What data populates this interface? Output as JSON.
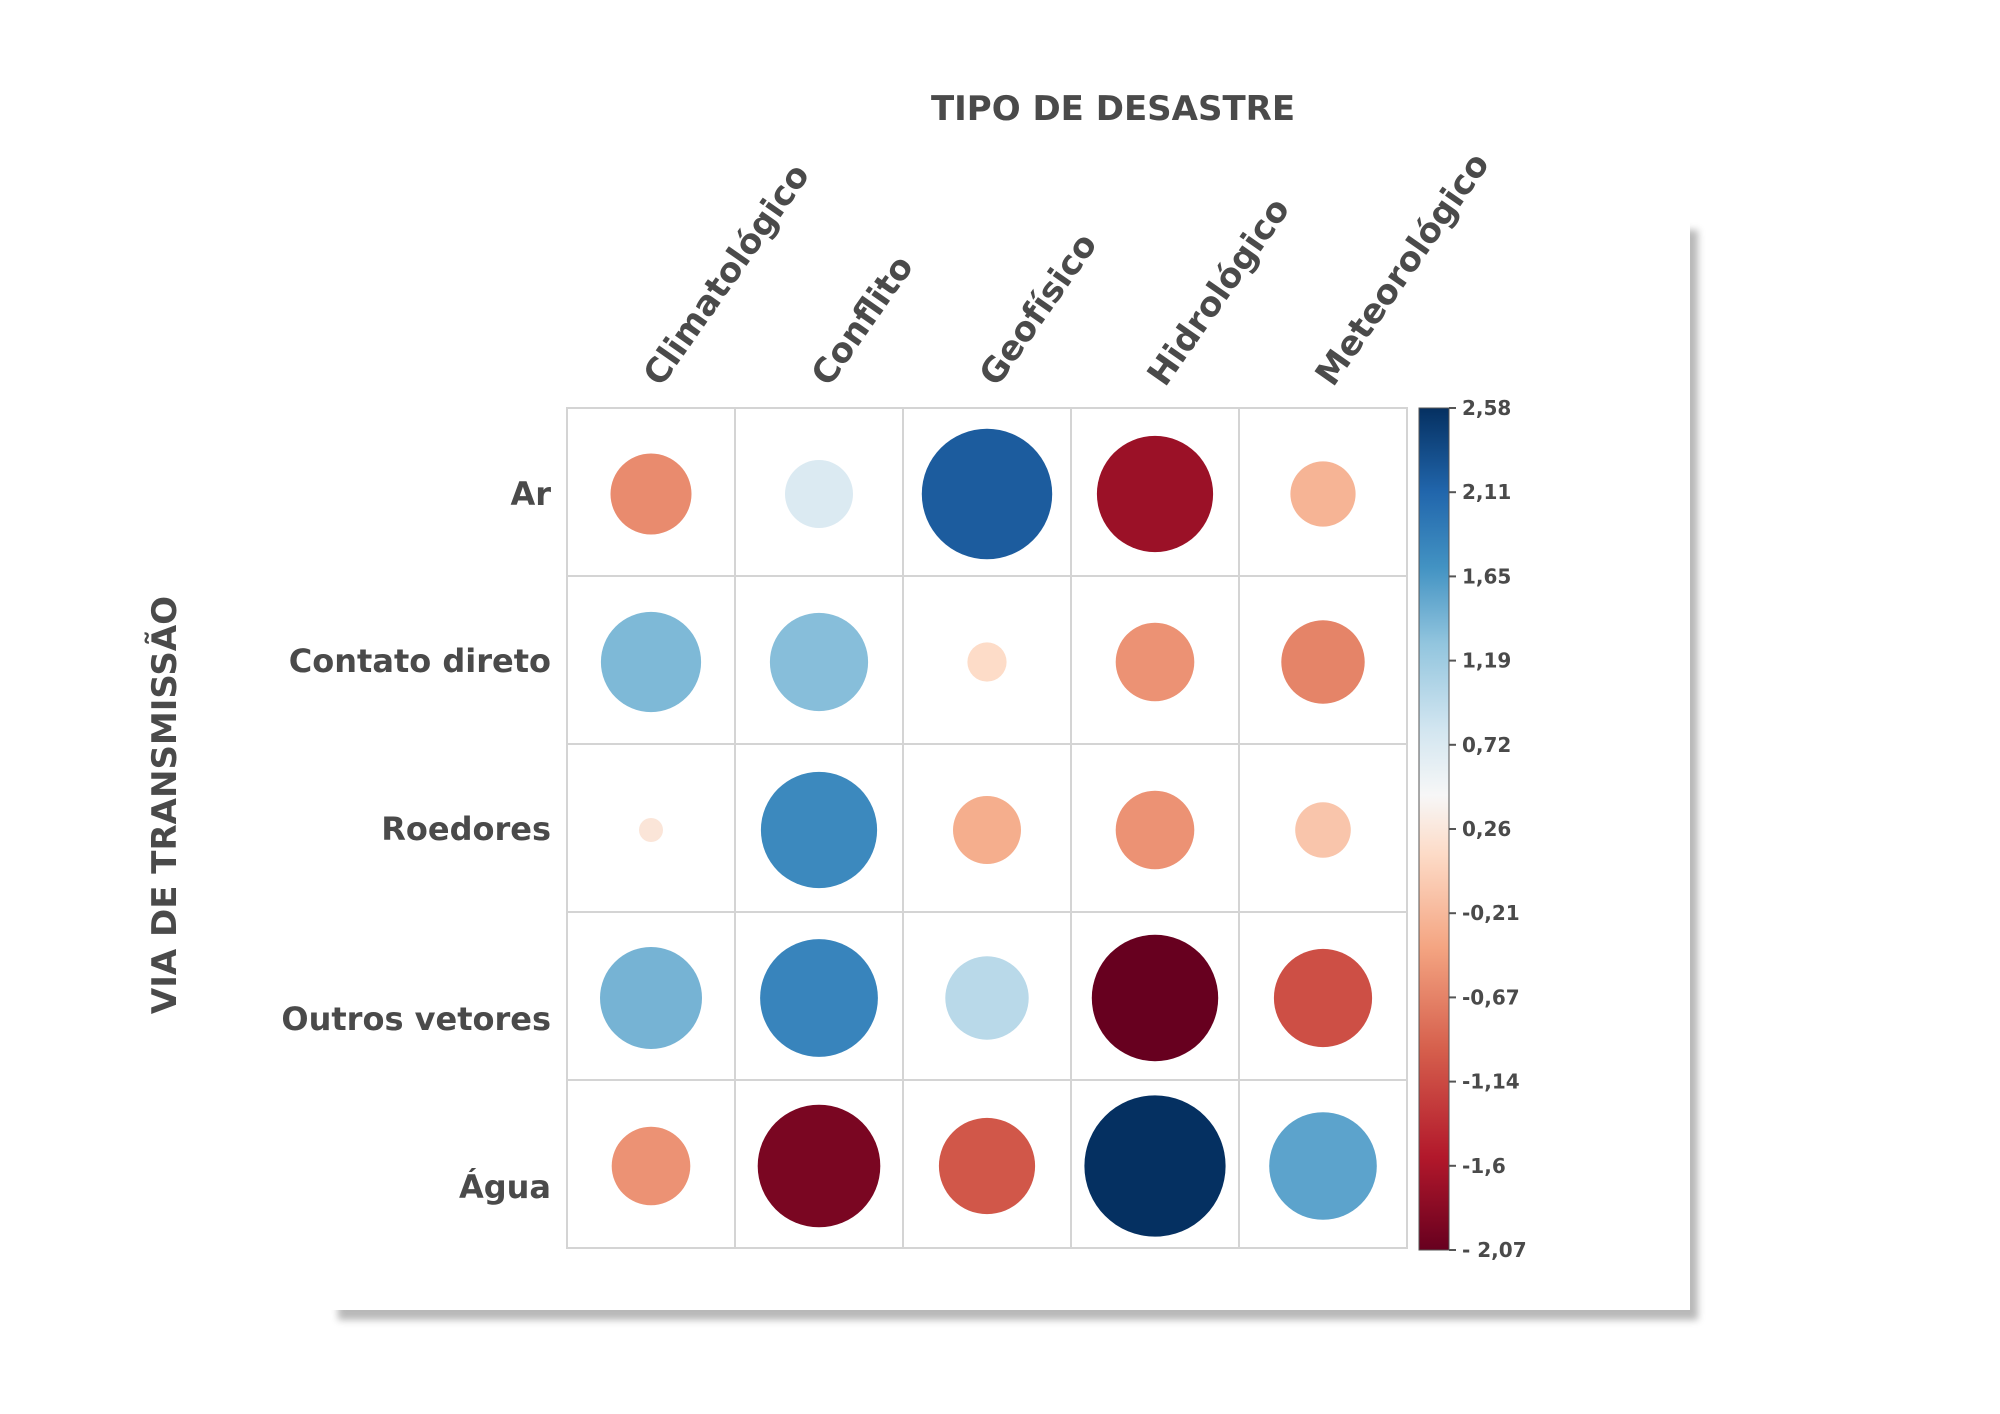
{
  "chart_data": {
    "type": "heatmap",
    "title": "TIPO DE DESASTRE",
    "ylabel": "VIA DE TRANSMISSÃO",
    "columns": [
      "Climatológico",
      "Conflito",
      "Geofísico",
      "Hidrológico",
      "Meteorológico"
    ],
    "rows": [
      "Ar",
      "Contato direto",
      "Roedores",
      "Outros vetores",
      "Água"
    ],
    "values": [
      [
        -0.85,
        0.6,
        2.2,
        -1.75,
        -0.55
      ],
      [
        1.3,
        1.25,
        -0.2,
        -0.8,
        -0.9
      ],
      [
        -0.05,
        1.75,
        -0.6,
        -0.8,
        -0.4
      ],
      [
        1.35,
        1.8,
        0.9,
        -2.07,
        -1.25
      ],
      [
        -0.8,
        -1.95,
        -1.2,
        2.58,
        1.5
      ]
    ],
    "colorbar": {
      "ticks": [
        "2,58",
        "2,11",
        "1,65",
        "1,19",
        "0,72",
        "0,26",
        "-0,21",
        "-0,67",
        "-1,14",
        "-1,6",
        "- 2,07"
      ],
      "range": [
        -2.07,
        2.58
      ],
      "colors": [
        "#67001f",
        "#b2182b",
        "#d6604d",
        "#f4a582",
        "#fddbc7",
        "#f7f7f7",
        "#d1e5f0",
        "#92c5de",
        "#4393c3",
        "#2166ac",
        "#053061"
      ]
    }
  }
}
